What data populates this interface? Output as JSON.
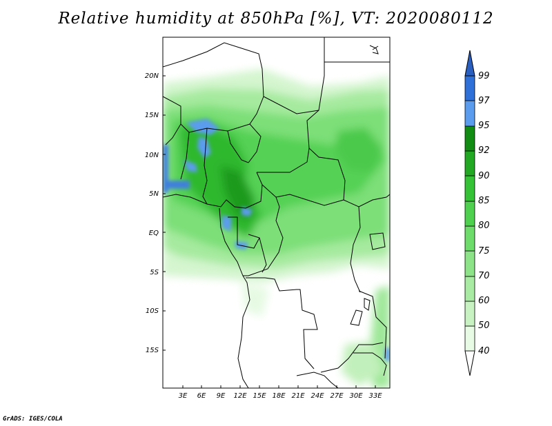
{
  "title": "Relative humidity at 850hPa [%], VT: 2020080112",
  "credit": "GrADS: IGES/COLA",
  "map": {
    "lat_ticks": [
      "20N",
      "15N",
      "10N",
      "5N",
      "EQ",
      "5S",
      "10S",
      "15S"
    ],
    "lon_ticks": [
      "3E",
      "6E",
      "9E",
      "12E",
      "15E",
      "18E",
      "21E",
      "24E",
      "27E",
      "30E",
      "33E"
    ]
  },
  "colorbar": {
    "levels": [
      "40",
      "50",
      "60",
      "70",
      "75",
      "80",
      "85",
      "90",
      "92",
      "95",
      "97",
      "99"
    ],
    "colors": [
      "#ffffff",
      "#e8fbe5",
      "#c8f2c2",
      "#aaeba3",
      "#8de387",
      "#6edc6a",
      "#4fd14f",
      "#36c236",
      "#22a822",
      "#138c13",
      "#5b9cee",
      "#2f6fd8",
      "#2a5fbf"
    ]
  }
}
